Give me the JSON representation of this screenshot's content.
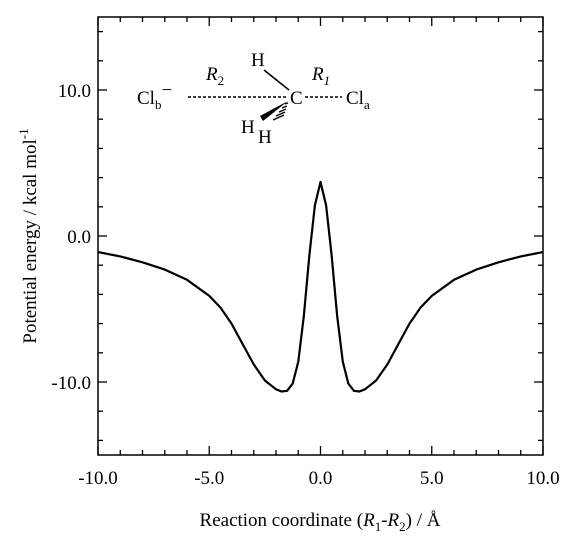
{
  "chart_data": {
    "type": "line",
    "xlabel": "Reaction coordinate (R1-R2) / Å",
    "ylabel": "Potential energy / kcal mol-1",
    "xlim": [
      -10.0,
      10.0
    ],
    "ylim": [
      -15.0,
      15.0
    ],
    "x_ticks": [
      "-10.0",
      "-5.0",
      "0.0",
      "5.0",
      "10.0"
    ],
    "y_ticks": [
      "-10.0",
      "0.0",
      "10.0"
    ],
    "grid": false,
    "series": [
      {
        "color": "#000000",
        "x": [
          -10.0,
          -9.0,
          -8.0,
          -7.0,
          -6.0,
          -5.0,
          -4.5,
          -4.0,
          -3.5,
          -3.0,
          -2.5,
          -2.0,
          -1.75,
          -1.5,
          -1.25,
          -1.0,
          -0.75,
          -0.5,
          -0.25,
          0.0,
          0.25,
          0.5,
          0.75,
          1.0,
          1.25,
          1.5,
          1.75,
          2.0,
          2.5,
          3.0,
          3.5,
          4.0,
          4.5,
          5.0,
          6.0,
          7.0,
          8.0,
          9.0,
          10.0
        ],
        "y": [
          -1.1,
          -1.4,
          -1.8,
          -2.3,
          -3.0,
          -4.1,
          -4.9,
          -6.0,
          -7.4,
          -8.8,
          -9.9,
          -10.5,
          -10.65,
          -10.6,
          -10.1,
          -8.6,
          -5.5,
          -1.3,
          2.1,
          3.7,
          2.1,
          -1.3,
          -5.5,
          -8.6,
          -10.1,
          -10.6,
          -10.65,
          -10.5,
          -9.9,
          -8.8,
          -7.4,
          -6.0,
          -4.9,
          -4.1,
          -3.0,
          -2.3,
          -1.8,
          -1.4,
          -1.1
        ]
      }
    ]
  },
  "molecule": {
    "cl_b": "Cl",
    "cl_b_sub": "b",
    "cl_b_charge": "−",
    "cl_a": "Cl",
    "cl_a_sub": "a",
    "carbon": "C",
    "h_top": "H",
    "h_left": "H",
    "h_right": "H",
    "r2": "R",
    "r2_sub": "2",
    "r1": "R",
    "r1_sub": "1"
  },
  "labels": {
    "x_title_main": "Reaction coordinate (",
    "x_r1": "R",
    "x_r1_sub": "1",
    "x_dash": "-",
    "x_r2": "R",
    "x_r2_sub": "2",
    "x_tail": ") / Å",
    "y_title_main": "Potential energy / kcal mol",
    "y_title_sup": "-1"
  }
}
